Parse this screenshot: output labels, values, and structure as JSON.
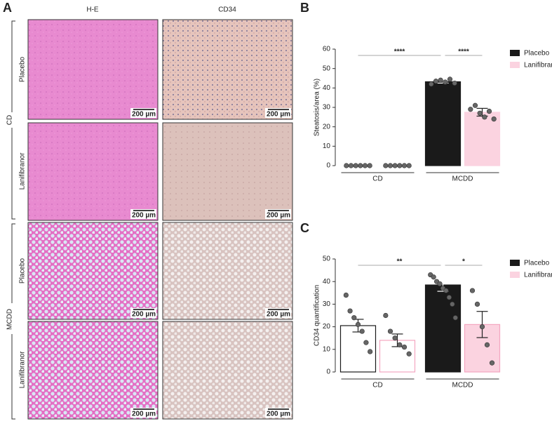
{
  "panel_a": {
    "label": "A",
    "columns": [
      "H-E",
      "CD34"
    ],
    "groups": [
      {
        "name": "CD",
        "rows": [
          "Placebo",
          "Lanifibranor"
        ]
      },
      {
        "name": "MCDD",
        "rows": [
          "Placebo",
          "Lanifibranor"
        ]
      }
    ],
    "scale_bar": "200 µm"
  },
  "chart_data": [
    {
      "type": "bar",
      "panel": "B",
      "y_label": "Steatosis/area (%)",
      "categories": [
        "CD",
        "MCDD"
      ],
      "series": [
        {
          "name": "Placebo",
          "color": "#1a1a1a",
          "fills": [
            "#1a1a1a",
            "#1a1a1a"
          ],
          "values": [
            0,
            43.2
          ],
          "errors": [
            0,
            0.7
          ],
          "points": [
            [
              0,
              0,
              0,
              0,
              0,
              0
            ],
            [
              42,
              43.5,
              44,
              43,
              44.5,
              42.5
            ]
          ]
        },
        {
          "name": "Lanifibranor",
          "color": "#fbd3e0",
          "fills": [
            "#fbd3e0",
            "#fbd3e0"
          ],
          "values": [
            0,
            27.5
          ],
          "errors": [
            0,
            2
          ],
          "points": [
            [
              0,
              0,
              0,
              0,
              0,
              0
            ],
            [
              29,
              31,
              27,
              25,
              28,
              24
            ]
          ]
        }
      ],
      "ylim": [
        0,
        60
      ],
      "yticks": [
        0,
        10,
        20,
        30,
        40,
        50,
        60
      ],
      "annotations": [
        "****",
        "****"
      ],
      "legend": "right"
    },
    {
      "type": "bar",
      "panel": "C",
      "y_label": "CD34 quantification",
      "categories": [
        "CD",
        "MCDD"
      ],
      "series": [
        {
          "name": "Placebo",
          "color": "#1a1a1a",
          "fills": [
            "#ffffff",
            "#1a1a1a"
          ],
          "values": [
            20.5,
            38.5
          ],
          "errors": [
            2.8,
            2.8
          ],
          "points": [
            [
              34,
              27,
              24,
              21,
              18,
              13,
              9
            ],
            [
              43,
              42,
              40,
              39,
              37,
              36,
              33,
              30,
              24
            ]
          ]
        },
        {
          "name": "Lanifibranor",
          "color": "#f4a6c0",
          "fills": [
            "#ffffff",
            "#fbd3e0"
          ],
          "values": [
            14,
            21
          ],
          "errors": [
            2.8,
            5.8
          ],
          "points": [
            [
              25,
              18,
              15,
              12,
              11,
              8
            ],
            [
              36,
              30,
              20,
              12,
              4
            ]
          ]
        }
      ],
      "ylim": [
        0,
        50
      ],
      "yticks": [
        0,
        10,
        20,
        30,
        40,
        50
      ],
      "annotations": [
        "**",
        "*"
      ],
      "legend": "right"
    }
  ]
}
